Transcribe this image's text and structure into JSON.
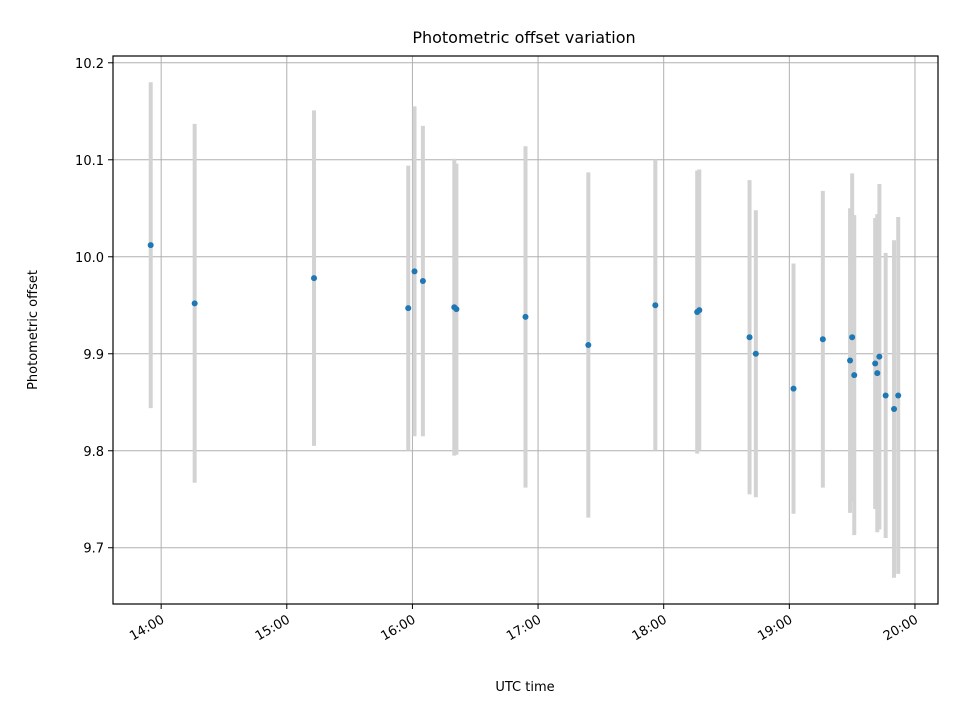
{
  "chart_data": {
    "type": "scatter",
    "title": "Photometric offset variation",
    "xlabel": "UTC time",
    "ylabel": "Photometric offset",
    "x_tick_labels": [
      "14:00",
      "15:00",
      "16:00",
      "17:00",
      "18:00",
      "19:00",
      "20:00"
    ],
    "y_tick_labels": [
      "9.7",
      "9.8",
      "9.9",
      "10.0",
      "10.1",
      "10.2"
    ],
    "xlim": [
      "13:37",
      "20:11"
    ],
    "ylim": [
      9.642,
      10.207
    ],
    "grid": true,
    "colors": {
      "point": "#1f77b4",
      "errorbar": "#d3d3d3",
      "grid": "#b0b0b0"
    },
    "points": [
      {
        "x": "13:55",
        "y": 10.012,
        "err": 0.168
      },
      {
        "x": "14:16",
        "y": 9.952,
        "err": 0.185
      },
      {
        "x": "15:13",
        "y": 9.978,
        "err": 0.173
      },
      {
        "x": "15:58",
        "y": 9.947,
        "err": 0.147
      },
      {
        "x": "16:01",
        "y": 9.985,
        "err": 0.17
      },
      {
        "x": "16:05",
        "y": 9.975,
        "err": 0.16
      },
      {
        "x": "16:20",
        "y": 9.948,
        "err": 0.153
      },
      {
        "x": "16:21",
        "y": 9.946,
        "err": 0.15
      },
      {
        "x": "16:54",
        "y": 9.938,
        "err": 0.176
      },
      {
        "x": "17:24",
        "y": 9.909,
        "err": 0.178
      },
      {
        "x": "17:56",
        "y": 9.95,
        "err": 0.15
      },
      {
        "x": "18:16",
        "y": 9.943,
        "err": 0.146
      },
      {
        "x": "18:17",
        "y": 9.945,
        "err": 0.145
      },
      {
        "x": "18:41",
        "y": 9.917,
        "err": 0.162
      },
      {
        "x": "18:44",
        "y": 9.9,
        "err": 0.148
      },
      {
        "x": "19:02",
        "y": 9.864,
        "err": 0.129
      },
      {
        "x": "19:16",
        "y": 9.915,
        "err": 0.153
      },
      {
        "x": "19:29",
        "y": 9.893,
        "err": 0.157
      },
      {
        "x": "19:30",
        "y": 9.917,
        "err": 0.169
      },
      {
        "x": "19:31",
        "y": 9.878,
        "err": 0.165
      },
      {
        "x": "19:41",
        "y": 9.89,
        "err": 0.15
      },
      {
        "x": "19:42",
        "y": 9.88,
        "err": 0.164
      },
      {
        "x": "19:43",
        "y": 9.897,
        "err": 0.178
      },
      {
        "x": "19:46",
        "y": 9.857,
        "err": 0.147
      },
      {
        "x": "19:50",
        "y": 9.843,
        "err": 0.174
      },
      {
        "x": "19:52",
        "y": 9.857,
        "err": 0.184
      }
    ]
  }
}
